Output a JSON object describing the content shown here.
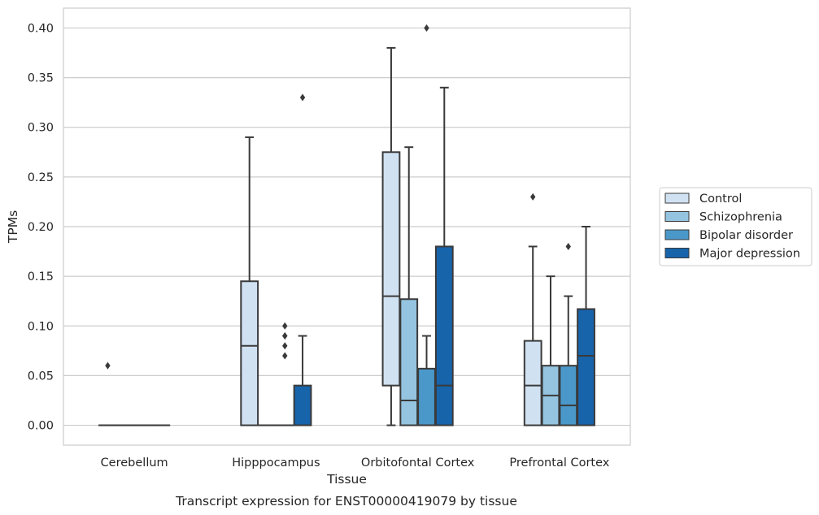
{
  "chart_data": {
    "type": "box",
    "caption": "Transcript expression for ENST00000419079 by tissue",
    "xlabel": "Tissue",
    "ylabel": "TPMs",
    "ylim": [
      -0.02,
      0.42
    ],
    "yticks": [
      "0.00",
      "0.05",
      "0.10",
      "0.15",
      "0.20",
      "0.25",
      "0.30",
      "0.35",
      "0.40"
    ],
    "grid": true,
    "legend_position": "right",
    "categories": [
      "Cerebellum",
      "Hipppocampus",
      "Orbitofontal Cortex",
      "Prefrontal Cortex"
    ],
    "series": [
      {
        "name": "Control",
        "color": "#d0e1f2",
        "boxes": [
          {
            "min": 0,
            "q1": 0,
            "median": 0,
            "q3": 0,
            "max": 0,
            "outliers": [
              0.06
            ]
          },
          {
            "min": 0,
            "q1": 0,
            "median": 0.08,
            "q3": 0.145,
            "max": 0.29,
            "outliers": []
          },
          {
            "min": 0,
            "q1": 0.04,
            "median": 0.13,
            "q3": 0.275,
            "max": 0.38,
            "outliers": []
          },
          {
            "min": 0,
            "q1": 0,
            "median": 0.04,
            "q3": 0.085,
            "max": 0.18,
            "outliers": [
              0.23
            ]
          }
        ]
      },
      {
        "name": "Schizophrenia",
        "color": "#94c4df",
        "boxes": [
          {
            "min": 0,
            "q1": 0,
            "median": 0,
            "q3": 0,
            "max": 0,
            "outliers": []
          },
          {
            "min": 0,
            "q1": 0,
            "median": 0,
            "q3": 0,
            "max": 0,
            "outliers": []
          },
          {
            "min": 0,
            "q1": 0,
            "median": 0.025,
            "q3": 0.127,
            "max": 0.28,
            "outliers": []
          },
          {
            "min": 0,
            "q1": 0,
            "median": 0.03,
            "q3": 0.06,
            "max": 0.15,
            "outliers": []
          }
        ]
      },
      {
        "name": "Bipolar disorder",
        "color": "#4a98c9",
        "boxes": [
          {
            "min": 0,
            "q1": 0,
            "median": 0,
            "q3": 0,
            "max": 0,
            "outliers": []
          },
          {
            "min": 0,
            "q1": 0,
            "median": 0,
            "q3": 0,
            "max": 0,
            "outliers": [
              0.07,
              0.08,
              0.09,
              0.09,
              0.1
            ]
          },
          {
            "min": 0,
            "q1": 0,
            "median": 0,
            "q3": 0.057,
            "max": 0.09,
            "outliers": [
              0.4
            ]
          },
          {
            "min": 0,
            "q1": 0,
            "median": 0.02,
            "q3": 0.06,
            "max": 0.13,
            "outliers": [
              0.18
            ]
          }
        ]
      },
      {
        "name": "Major depression",
        "color": "#1764ab",
        "boxes": [
          {
            "min": 0,
            "q1": 0,
            "median": 0,
            "q3": 0,
            "max": 0,
            "outliers": []
          },
          {
            "min": 0,
            "q1": 0,
            "median": 0,
            "q3": 0.04,
            "max": 0.09,
            "outliers": [
              0.33
            ]
          },
          {
            "min": 0,
            "q1": 0,
            "median": 0.04,
            "q3": 0.18,
            "max": 0.34,
            "outliers": []
          },
          {
            "min": 0,
            "q1": 0,
            "median": 0.07,
            "q3": 0.117,
            "max": 0.2,
            "outliers": []
          }
        ]
      }
    ]
  }
}
